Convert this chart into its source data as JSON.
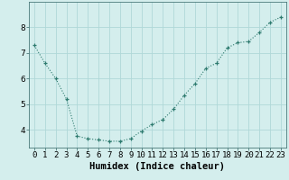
{
  "x": [
    0,
    1,
    2,
    3,
    4,
    5,
    6,
    7,
    8,
    9,
    10,
    11,
    12,
    13,
    14,
    15,
    16,
    17,
    18,
    19,
    20,
    21,
    22,
    23
  ],
  "y": [
    7.3,
    6.6,
    6.0,
    5.2,
    3.75,
    3.65,
    3.6,
    3.55,
    3.55,
    3.65,
    3.95,
    4.2,
    4.4,
    4.8,
    5.35,
    5.8,
    6.4,
    6.6,
    7.2,
    7.4,
    7.45,
    7.8,
    8.2,
    8.4
  ],
  "line_color": "#2d7a6e",
  "marker": "+",
  "marker_size": 3,
  "bg_color": "#d4eeed",
  "grid_color": "#b0d8d8",
  "xlabel": "Humidex (Indice chaleur)",
  "ylim": [
    3.3,
    9.0
  ],
  "yticks": [
    4,
    5,
    6,
    7,
    8
  ],
  "xlabel_fontsize": 7.5,
  "tick_fontsize": 6.5,
  "line_width": 0.8
}
